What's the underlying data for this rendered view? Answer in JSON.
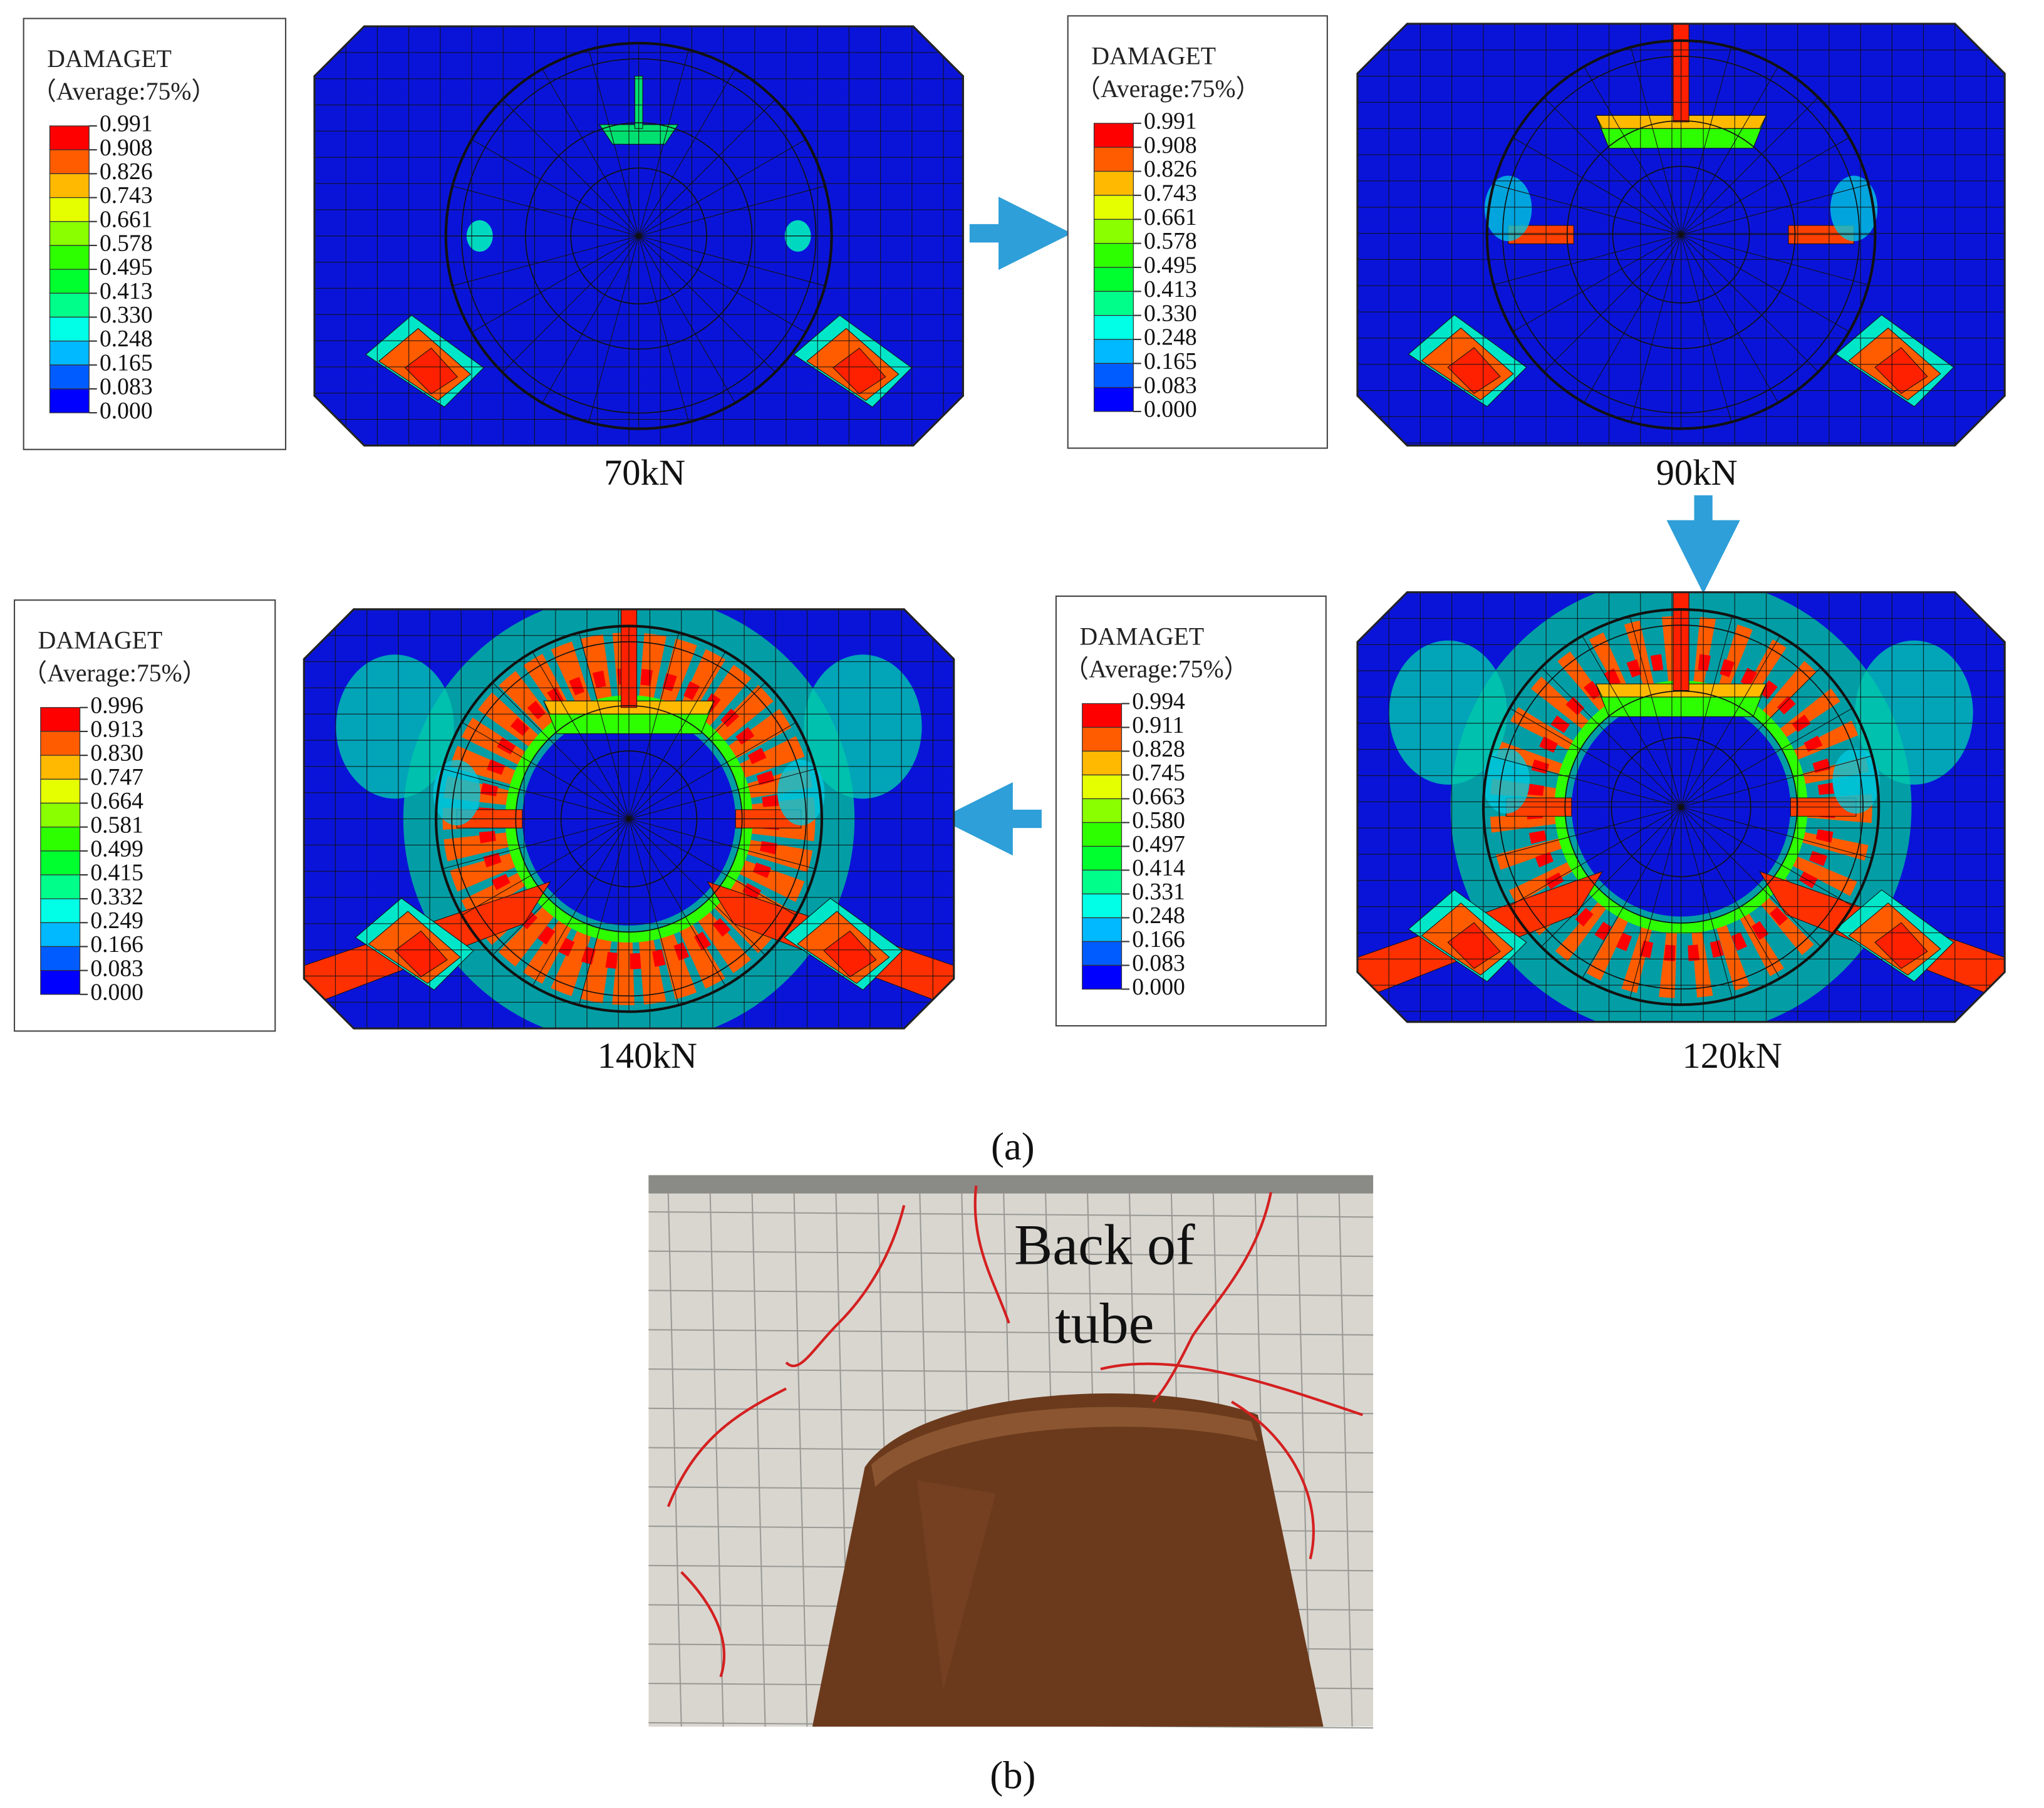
{
  "panels": [
    {
      "legend": {
        "title": "DAMAGET",
        "subtitle": "（Average:75%）",
        "values": [
          "0.991",
          "0.908",
          "0.826",
          "0.743",
          "0.661",
          "0.578",
          "0.495",
          "0.413",
          "0.330",
          "0.248",
          "0.165",
          "0.083",
          "0.000"
        ]
      },
      "label": "70kN"
    },
    {
      "legend": {
        "title": "DAMAGET",
        "subtitle": "（Average:75%）",
        "values": [
          "0.991",
          "0.908",
          "0.826",
          "0.743",
          "0.661",
          "0.578",
          "0.495",
          "0.413",
          "0.330",
          "0.248",
          "0.165",
          "0.083",
          "0.000"
        ]
      },
      "label": "90kN"
    },
    {
      "legend": {
        "title": "DAMAGET",
        "subtitle": "（Average:75%）",
        "values": [
          "0.994",
          "0.911",
          "0.828",
          "0.745",
          "0.663",
          "0.580",
          "0.497",
          "0.414",
          "0.331",
          "0.248",
          "0.166",
          "0.083",
          "0.000"
        ]
      },
      "label": "120kN"
    },
    {
      "legend": {
        "title": "DAMAGET",
        "subtitle": "（Average:75%）",
        "values": [
          "0.996",
          "0.913",
          "0.830",
          "0.747",
          "0.664",
          "0.581",
          "0.499",
          "0.415",
          "0.332",
          "0.249",
          "0.166",
          "0.083",
          "0.000"
        ]
      },
      "label": "140kN"
    }
  ],
  "captions": {
    "a": "(a)",
    "b": "(b)"
  },
  "photo": {
    "text": [
      "Back of",
      "tube"
    ]
  }
}
